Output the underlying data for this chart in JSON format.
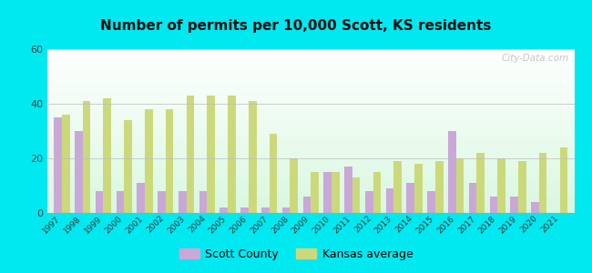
{
  "title": "Number of permits per 10,000 Scott, KS residents",
  "years": [
    1997,
    1998,
    1999,
    2000,
    2001,
    2002,
    2003,
    2004,
    2005,
    2006,
    2007,
    2008,
    2009,
    2010,
    2011,
    2012,
    2013,
    2014,
    2015,
    2016,
    2017,
    2018,
    2019,
    2020,
    2021
  ],
  "scott_county": [
    35,
    30,
    8,
    8,
    11,
    8,
    8,
    8,
    2,
    2,
    2,
    2,
    6,
    15,
    17,
    8,
    9,
    11,
    8,
    30,
    11,
    6,
    6,
    4,
    0
  ],
  "kansas_avg": [
    36,
    41,
    42,
    34,
    38,
    38,
    43,
    43,
    43,
    41,
    29,
    20,
    15,
    15,
    13,
    15,
    19,
    18,
    19,
    20,
    22,
    20,
    19,
    22,
    24
  ],
  "scott_color": "#c9a8d8",
  "kansas_color": "#ccd97a",
  "bg_outer": "#00e8f0",
  "ylim": [
    0,
    60
  ],
  "yticks": [
    0,
    20,
    40,
    60
  ],
  "bar_width": 0.38,
  "legend_scott": "Scott County",
  "legend_kansas": "Kansas average",
  "watermark": "City-Data.com"
}
